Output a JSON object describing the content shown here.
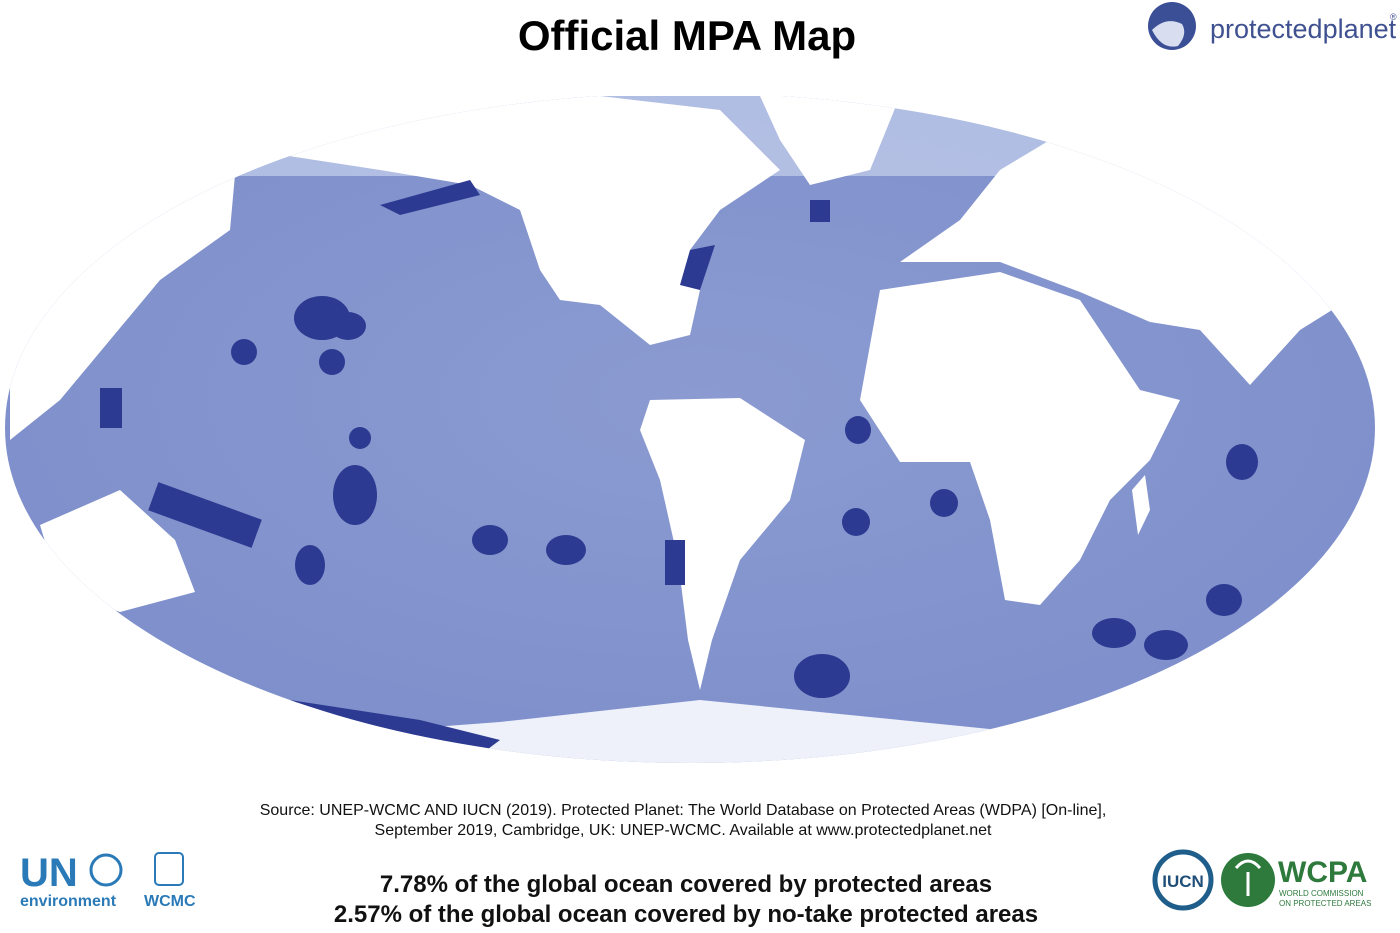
{
  "header": {
    "title": "Official MPA Map",
    "brand": "protectedplanet",
    "brand_mark": "®"
  },
  "source": [
    "Source: UNEP-WCMC AND IUCN (2019). Protected Planet: The World Database on Protected Areas (WDPA) [On-line],",
    "September 2019, Cambridge, UK: UNEP-WCMC. Available at www.protectedplanet.net"
  ],
  "stats": [
    "7.78% of the global ocean covered by protected areas",
    "2.57% of the global ocean covered by no-take protected areas"
  ],
  "logos": {
    "un": "UN",
    "un_sub": "environment",
    "wcmc": "WCMC",
    "iucn": "IUCN",
    "wcpa": "WCPA",
    "wcpa_sub": [
      "WORLD COMMISSION",
      "ON PROTECTED AREAS"
    ]
  }
}
